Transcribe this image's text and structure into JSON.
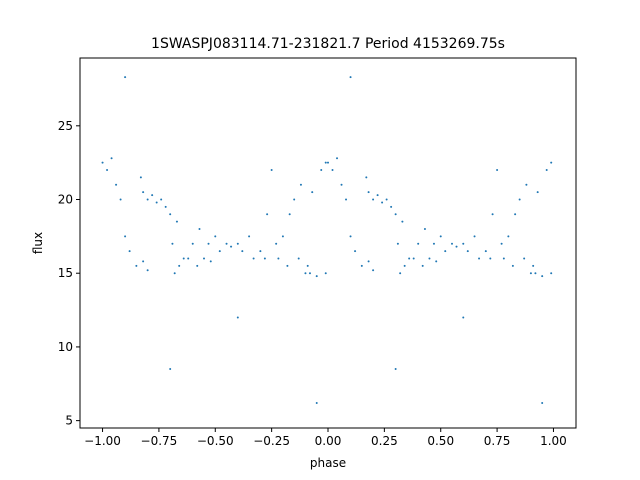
{
  "chart_data": {
    "type": "scatter",
    "title": "1SWASPJ083114.71-231821.7 Period 4153269.75s",
    "xlabel": "phase",
    "ylabel": "flux",
    "xlim": [
      -1.1,
      1.1
    ],
    "ylim": [
      4.5,
      29.6
    ],
    "xticks": [
      {
        "value": -1,
        "label": "−1.00"
      },
      {
        "value": -0.75,
        "label": "−0.75"
      },
      {
        "value": -0.5,
        "label": "−0.50"
      },
      {
        "value": -0.25,
        "label": "−0.25"
      },
      {
        "value": 0,
        "label": "0.00"
      },
      {
        "value": 0.25,
        "label": "0.25"
      },
      {
        "value": 0.5,
        "label": "0.50"
      },
      {
        "value": 0.75,
        "label": "0.75"
      },
      {
        "value": 1,
        "label": "1.00"
      }
    ],
    "yticks": [
      5,
      10,
      15,
      20,
      25
    ],
    "series": [
      {
        "color": "#1f77b4",
        "x": [
          0.0,
          0.02,
          0.04,
          0.06,
          0.08,
          0.1,
          0.12,
          0.15,
          0.18,
          0.2,
          0.17,
          0.18,
          0.2,
          0.22,
          0.24,
          0.26,
          0.28,
          0.3,
          0.31,
          0.32,
          0.34,
          0.36,
          0.33,
          0.38,
          0.4,
          0.42,
          0.43,
          0.45,
          0.47,
          0.48,
          0.5,
          0.52,
          0.55,
          0.57,
          0.6,
          0.62,
          0.65,
          0.67,
          0.7,
          0.72,
          0.73,
          0.75,
          0.77,
          0.78,
          0.8,
          0.82,
          0.83,
          0.85,
          0.87,
          0.88,
          0.9,
          0.91,
          0.92,
          0.93,
          0.95,
          0.97,
          0.99,
          0.99,
          0.1,
          0.3,
          0.6,
          0.95,
          -1.0,
          -0.98,
          -0.96,
          -0.94,
          -0.92,
          -0.9,
          -0.88,
          -0.85,
          -0.82,
          -0.8,
          -0.83,
          -0.82,
          -0.8,
          -0.78,
          -0.76,
          -0.74,
          -0.72,
          -0.7,
          -0.69,
          -0.68,
          -0.66,
          -0.64,
          -0.67,
          -0.62,
          -0.6,
          -0.58,
          -0.57,
          -0.55,
          -0.53,
          -0.52,
          -0.5,
          -0.48,
          -0.45,
          -0.43,
          -0.4,
          -0.38,
          -0.35,
          -0.33,
          -0.3,
          -0.28,
          -0.27,
          -0.25,
          -0.23,
          -0.22,
          -0.2,
          -0.18,
          -0.17,
          -0.15,
          -0.13,
          -0.12,
          -0.1,
          -0.09,
          -0.08,
          -0.07,
          -0.05,
          -0.03,
          -0.01,
          -0.01,
          -0.9,
          -0.7,
          -0.4,
          -0.05
        ],
        "values": [
          22.5,
          22.0,
          22.8,
          21,
          20,
          17.5,
          16.5,
          15.5,
          15.8,
          15.2,
          21.5,
          20.5,
          20,
          20.3,
          19.8,
          20,
          19.5,
          19.0,
          17,
          15,
          15.5,
          16,
          18.5,
          16,
          17,
          15.5,
          18,
          16,
          17,
          15.8,
          17.5,
          16.5,
          17,
          16.8,
          17,
          16.5,
          17.5,
          16,
          16.5,
          16,
          19,
          22,
          17,
          16,
          17.5,
          15.5,
          19,
          20,
          16,
          21,
          15,
          15.5,
          15,
          20.5,
          14.8,
          22,
          22.5,
          15,
          28.3,
          8.5,
          12,
          6.2,
          22.5,
          22.0,
          22.8,
          21,
          20,
          17.5,
          16.5,
          15.5,
          15.8,
          15.2,
          21.5,
          20.5,
          20,
          20.3,
          19.8,
          20,
          19.5,
          19.0,
          17,
          15,
          15.5,
          16,
          18.5,
          16,
          17,
          15.5,
          18,
          16,
          17,
          15.8,
          17.5,
          16.5,
          17,
          16.8,
          17,
          16.5,
          17.5,
          16,
          16.5,
          16,
          19,
          22,
          17,
          16,
          17.5,
          15.5,
          19,
          20,
          16,
          21,
          15,
          15.5,
          15,
          20.5,
          14.8,
          22,
          22.5,
          15,
          28.3,
          8.5,
          12,
          6.2
        ]
      }
    ]
  }
}
